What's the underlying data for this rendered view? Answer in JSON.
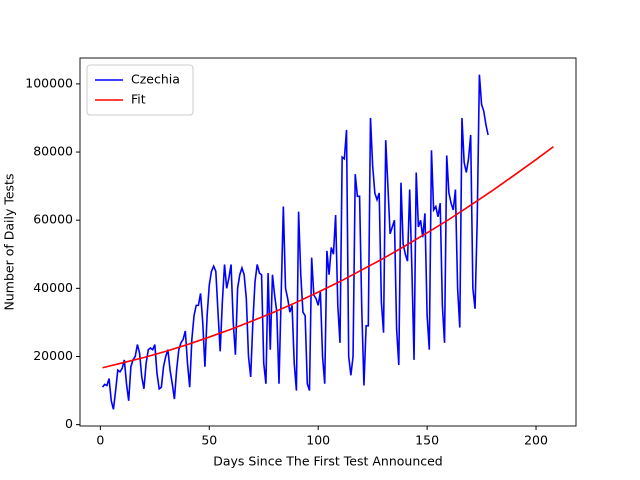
{
  "chart_data": {
    "type": "line",
    "xlabel": "Days Since The First Test Announced",
    "ylabel": "Number of Daily Tests",
    "xlim": [
      -9.35,
      218.35
    ],
    "ylim": [
      -400,
      107600
    ],
    "xticks": [
      0,
      50,
      100,
      150,
      200
    ],
    "yticks": [
      0,
      20000,
      40000,
      60000,
      80000,
      100000
    ],
    "legend": "upper left",
    "series": [
      {
        "name": "Czechia",
        "color": "#0000ff",
        "x": [
          1,
          2,
          3,
          4,
          5,
          6,
          7,
          8,
          9,
          10,
          11,
          12,
          13,
          14,
          15,
          16,
          17,
          18,
          19,
          20,
          21,
          22,
          23,
          24,
          25,
          26,
          27,
          28,
          29,
          30,
          31,
          32,
          33,
          34,
          35,
          36,
          37,
          38,
          39,
          40,
          41,
          42,
          43,
          44,
          45,
          46,
          47,
          48,
          49,
          50,
          51,
          52,
          53,
          54,
          55,
          56,
          57,
          58,
          59,
          60,
          61,
          62,
          63,
          64,
          65,
          66,
          67,
          68,
          69,
          70,
          71,
          72,
          73,
          74,
          75,
          76,
          77,
          78,
          79,
          80,
          81,
          82,
          83,
          84,
          85,
          86,
          87,
          88,
          89,
          90,
          91,
          92,
          93,
          94,
          95,
          96,
          97,
          98,
          99,
          100,
          101,
          102,
          103,
          104,
          105,
          106,
          107,
          108,
          109,
          110,
          111,
          112,
          113,
          114,
          115,
          116,
          117,
          118,
          119,
          120,
          121,
          122,
          123,
          124,
          125,
          126,
          127,
          128,
          129,
          130,
          131,
          132,
          133,
          134,
          135,
          136,
          137,
          138,
          139,
          140,
          141,
          142,
          143,
          144,
          145,
          146,
          147,
          148,
          149,
          150,
          151,
          152,
          153,
          154,
          155,
          156,
          157,
          158,
          159,
          160,
          161,
          162,
          163,
          164,
          165,
          166,
          167,
          168,
          169,
          170,
          171,
          172,
          173,
          174,
          175,
          176,
          177,
          178
        ],
        "values": [
          11000,
          11800,
          11500,
          13500,
          7000,
          4500,
          10000,
          16000,
          15500,
          16500,
          19000,
          12000,
          7000,
          17000,
          19000,
          20000,
          23500,
          21000,
          14000,
          10500,
          18000,
          22000,
          22500,
          22000,
          23500,
          15000,
          10500,
          11000,
          17000,
          20000,
          22000,
          16000,
          12000,
          7500,
          16000,
          22000,
          24000,
          25000,
          27500,
          18000,
          11000,
          25000,
          32000,
          35000,
          35000,
          38500,
          30000,
          17000,
          32000,
          41000,
          45000,
          46500,
          45000,
          33000,
          21500,
          36000,
          47000,
          40000,
          43000,
          47000,
          30000,
          20500,
          40000,
          44000,
          46000,
          44000,
          37000,
          20000,
          14000,
          30000,
          42000,
          47000,
          44500,
          44000,
          18000,
          12000,
          44500,
          22000,
          44000,
          38000,
          33000,
          12000,
          38000,
          64000,
          40000,
          37000,
          33000,
          35000,
          18000,
          10000,
          62500,
          44000,
          33000,
          32000,
          12000,
          10000,
          49000,
          38000,
          37000,
          35000,
          39000,
          20000,
          12000,
          51000,
          44000,
          52000,
          50000,
          61500,
          35000,
          24000,
          78500,
          78000,
          86500,
          20000,
          14500,
          20000,
          73500,
          67000,
          67000,
          34000,
          11500,
          29000,
          29000,
          90000,
          76000,
          68000,
          66000,
          68000,
          36000,
          27000,
          83500,
          70000,
          56000,
          58000,
          60000,
          28000,
          17500,
          71000,
          53000,
          50000,
          48000,
          69000,
          46000,
          19000,
          74000,
          58000,
          60000,
          55000,
          62000,
          32000,
          22000,
          80500,
          63000,
          64000,
          61000,
          65000,
          35000,
          24000,
          79000,
          68000,
          65000,
          63000,
          69000,
          40000,
          28500,
          90000,
          77000,
          74000,
          78000,
          85000,
          40000,
          34000,
          60000,
          102700,
          94000,
          92000,
          88000,
          85000
        ]
      },
      {
        "name": "Fit",
        "color": "#ff0000",
        "x": [
          1,
          10,
          20,
          30,
          40,
          50,
          60,
          70,
          80,
          90,
          100,
          110,
          120,
          130,
          140,
          150,
          160,
          170,
          180,
          190,
          200,
          208
        ],
        "values": [
          16700,
          18100,
          19700,
          21500,
          23500,
          25700,
          28000,
          30500,
          33100,
          35900,
          38900,
          42000,
          45400,
          48800,
          52500,
          56300,
          60200,
          64400,
          68700,
          73200,
          77800,
          81600
        ]
      }
    ]
  }
}
